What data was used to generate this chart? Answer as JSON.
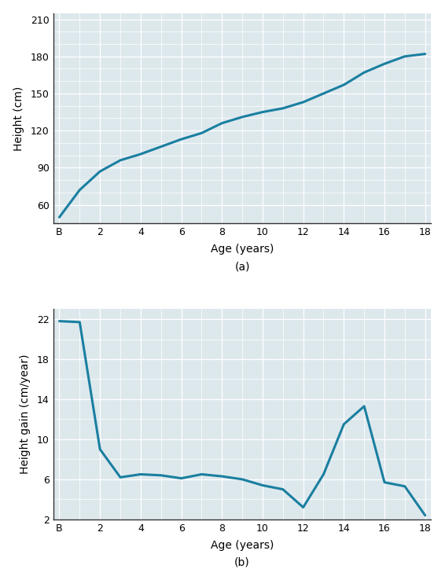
{
  "chart_a": {
    "title": "(a)",
    "xlabel": "Age (years)",
    "ylabel": "Height (cm)",
    "x": [
      0,
      1,
      2,
      3,
      4,
      5,
      6,
      7,
      8,
      9,
      10,
      11,
      12,
      13,
      14,
      15,
      16,
      17,
      18
    ],
    "y": [
      50,
      72,
      87,
      96,
      101,
      107,
      113,
      118,
      126,
      131,
      135,
      138,
      143,
      150,
      157,
      167,
      174,
      180,
      182
    ],
    "xlim": [
      -0.3,
      18.3
    ],
    "ylim": [
      45,
      215
    ],
    "yticks": [
      60,
      90,
      120,
      150,
      180,
      210
    ],
    "xticks": [
      0,
      2,
      4,
      6,
      8,
      10,
      12,
      14,
      16,
      18
    ],
    "xtick_labels": [
      "B",
      "2",
      "4",
      "6",
      "8",
      "10",
      "12",
      "14",
      "16",
      "18"
    ],
    "line_color": "#1a7fa0",
    "line_width": 2.2
  },
  "chart_b": {
    "title": "(b)",
    "xlabel": "Age (years)",
    "ylabel": "Height gain (cm/year)",
    "x": [
      0,
      1,
      2,
      3,
      4,
      5,
      6,
      7,
      8,
      9,
      10,
      11,
      12,
      13,
      14,
      15,
      16,
      17,
      18
    ],
    "y": [
      21.8,
      21.7,
      9.0,
      6.2,
      6.5,
      6.4,
      6.1,
      6.5,
      6.3,
      6.0,
      5.4,
      5.0,
      3.2,
      6.5,
      11.5,
      13.3,
      5.7,
      5.3,
      2.4
    ],
    "xlim": [
      -0.3,
      18.3
    ],
    "ylim": [
      2,
      23
    ],
    "yticks": [
      2,
      6,
      10,
      14,
      18,
      22
    ],
    "xticks": [
      0,
      2,
      4,
      6,
      8,
      10,
      12,
      14,
      16,
      18
    ],
    "xtick_labels": [
      "B",
      "2",
      "4",
      "6",
      "8",
      "10",
      "12",
      "14",
      "16",
      "18"
    ],
    "line_color": "#1a7fa0",
    "line_width": 2.2
  },
  "plot_bg": "#dde8ed",
  "grid_color": "#ffffff",
  "figure_bg": "#ffffff",
  "spine_color": "#333333",
  "tick_label_fontsize": 9,
  "axis_label_fontsize": 10,
  "title_fontsize": 10
}
